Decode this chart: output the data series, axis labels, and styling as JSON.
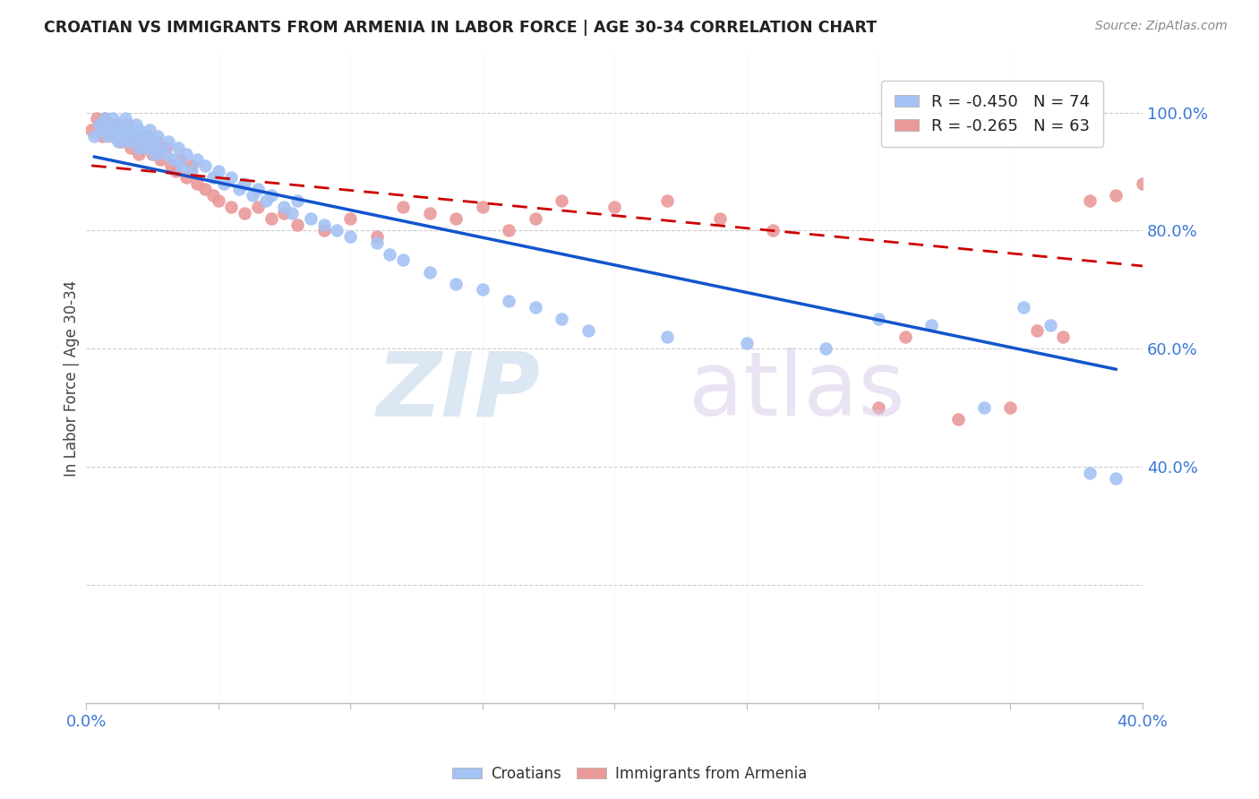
{
  "title": "CROATIAN VS IMMIGRANTS FROM ARMENIA IN LABOR FORCE | AGE 30-34 CORRELATION CHART",
  "source": "Source: ZipAtlas.com",
  "ylabel": "In Labor Force | Age 30-34",
  "xlim": [
    0.0,
    0.4
  ],
  "ylim": [
    0.0,
    1.1
  ],
  "blue_color": "#a4c2f4",
  "pink_color": "#ea9999",
  "trend_blue_color": "#1155cc",
  "trend_pink_color": "#cc0000",
  "legend_R_blue": "-0.450",
  "legend_N_blue": "74",
  "legend_R_pink": "-0.265",
  "legend_N_pink": "63",
  "blue_scatter_x": [
    0.003,
    0.005,
    0.006,
    0.007,
    0.008,
    0.009,
    0.01,
    0.01,
    0.011,
    0.012,
    0.013,
    0.014,
    0.015,
    0.015,
    0.016,
    0.017,
    0.018,
    0.019,
    0.02,
    0.02,
    0.021,
    0.022,
    0.023,
    0.024,
    0.025,
    0.026,
    0.027,
    0.028,
    0.03,
    0.031,
    0.033,
    0.035,
    0.036,
    0.038,
    0.04,
    0.042,
    0.045,
    0.048,
    0.05,
    0.052,
    0.055,
    0.058,
    0.06,
    0.063,
    0.065,
    0.068,
    0.07,
    0.075,
    0.078,
    0.08,
    0.085,
    0.09,
    0.095,
    0.1,
    0.11,
    0.115,
    0.12,
    0.13,
    0.14,
    0.15,
    0.16,
    0.17,
    0.18,
    0.19,
    0.22,
    0.25,
    0.28,
    0.3,
    0.32,
    0.34,
    0.355,
    0.365,
    0.38,
    0.39
  ],
  "blue_scatter_y": [
    0.96,
    0.98,
    0.97,
    0.99,
    0.96,
    0.98,
    0.97,
    0.99,
    0.96,
    0.95,
    0.97,
    0.98,
    0.96,
    0.99,
    0.95,
    0.97,
    0.96,
    0.98,
    0.94,
    0.97,
    0.95,
    0.96,
    0.94,
    0.97,
    0.95,
    0.93,
    0.96,
    0.94,
    0.93,
    0.95,
    0.92,
    0.94,
    0.91,
    0.93,
    0.9,
    0.92,
    0.91,
    0.89,
    0.9,
    0.88,
    0.89,
    0.87,
    0.88,
    0.86,
    0.87,
    0.85,
    0.86,
    0.84,
    0.83,
    0.85,
    0.82,
    0.81,
    0.8,
    0.79,
    0.78,
    0.76,
    0.75,
    0.73,
    0.71,
    0.7,
    0.68,
    0.67,
    0.65,
    0.63,
    0.62,
    0.61,
    0.6,
    0.65,
    0.64,
    0.5,
    0.67,
    0.64,
    0.39,
    0.38
  ],
  "pink_scatter_x": [
    0.002,
    0.004,
    0.005,
    0.006,
    0.007,
    0.008,
    0.009,
    0.01,
    0.011,
    0.012,
    0.013,
    0.014,
    0.015,
    0.016,
    0.017,
    0.018,
    0.019,
    0.02,
    0.021,
    0.022,
    0.023,
    0.025,
    0.027,
    0.028,
    0.03,
    0.032,
    0.034,
    0.036,
    0.038,
    0.04,
    0.042,
    0.045,
    0.048,
    0.05,
    0.055,
    0.06,
    0.065,
    0.07,
    0.075,
    0.08,
    0.09,
    0.1,
    0.11,
    0.12,
    0.13,
    0.14,
    0.15,
    0.16,
    0.17,
    0.18,
    0.2,
    0.22,
    0.24,
    0.26,
    0.3,
    0.31,
    0.33,
    0.35,
    0.36,
    0.37,
    0.38,
    0.39,
    0.4
  ],
  "pink_scatter_y": [
    0.97,
    0.99,
    0.98,
    0.96,
    0.99,
    0.97,
    0.98,
    0.96,
    0.97,
    0.98,
    0.95,
    0.97,
    0.96,
    0.98,
    0.94,
    0.96,
    0.95,
    0.93,
    0.95,
    0.94,
    0.96,
    0.93,
    0.95,
    0.92,
    0.94,
    0.91,
    0.9,
    0.92,
    0.89,
    0.91,
    0.88,
    0.87,
    0.86,
    0.85,
    0.84,
    0.83,
    0.84,
    0.82,
    0.83,
    0.81,
    0.8,
    0.82,
    0.79,
    0.84,
    0.83,
    0.82,
    0.84,
    0.8,
    0.82,
    0.85,
    0.84,
    0.85,
    0.82,
    0.8,
    0.5,
    0.62,
    0.48,
    0.5,
    0.63,
    0.62,
    0.85,
    0.86,
    0.88
  ],
  "blue_trend_x": [
    0.003,
    0.39
  ],
  "blue_trend_y": [
    0.925,
    0.565
  ],
  "pink_trend_x": [
    0.002,
    0.4
  ],
  "pink_trend_y": [
    0.91,
    0.74
  ]
}
